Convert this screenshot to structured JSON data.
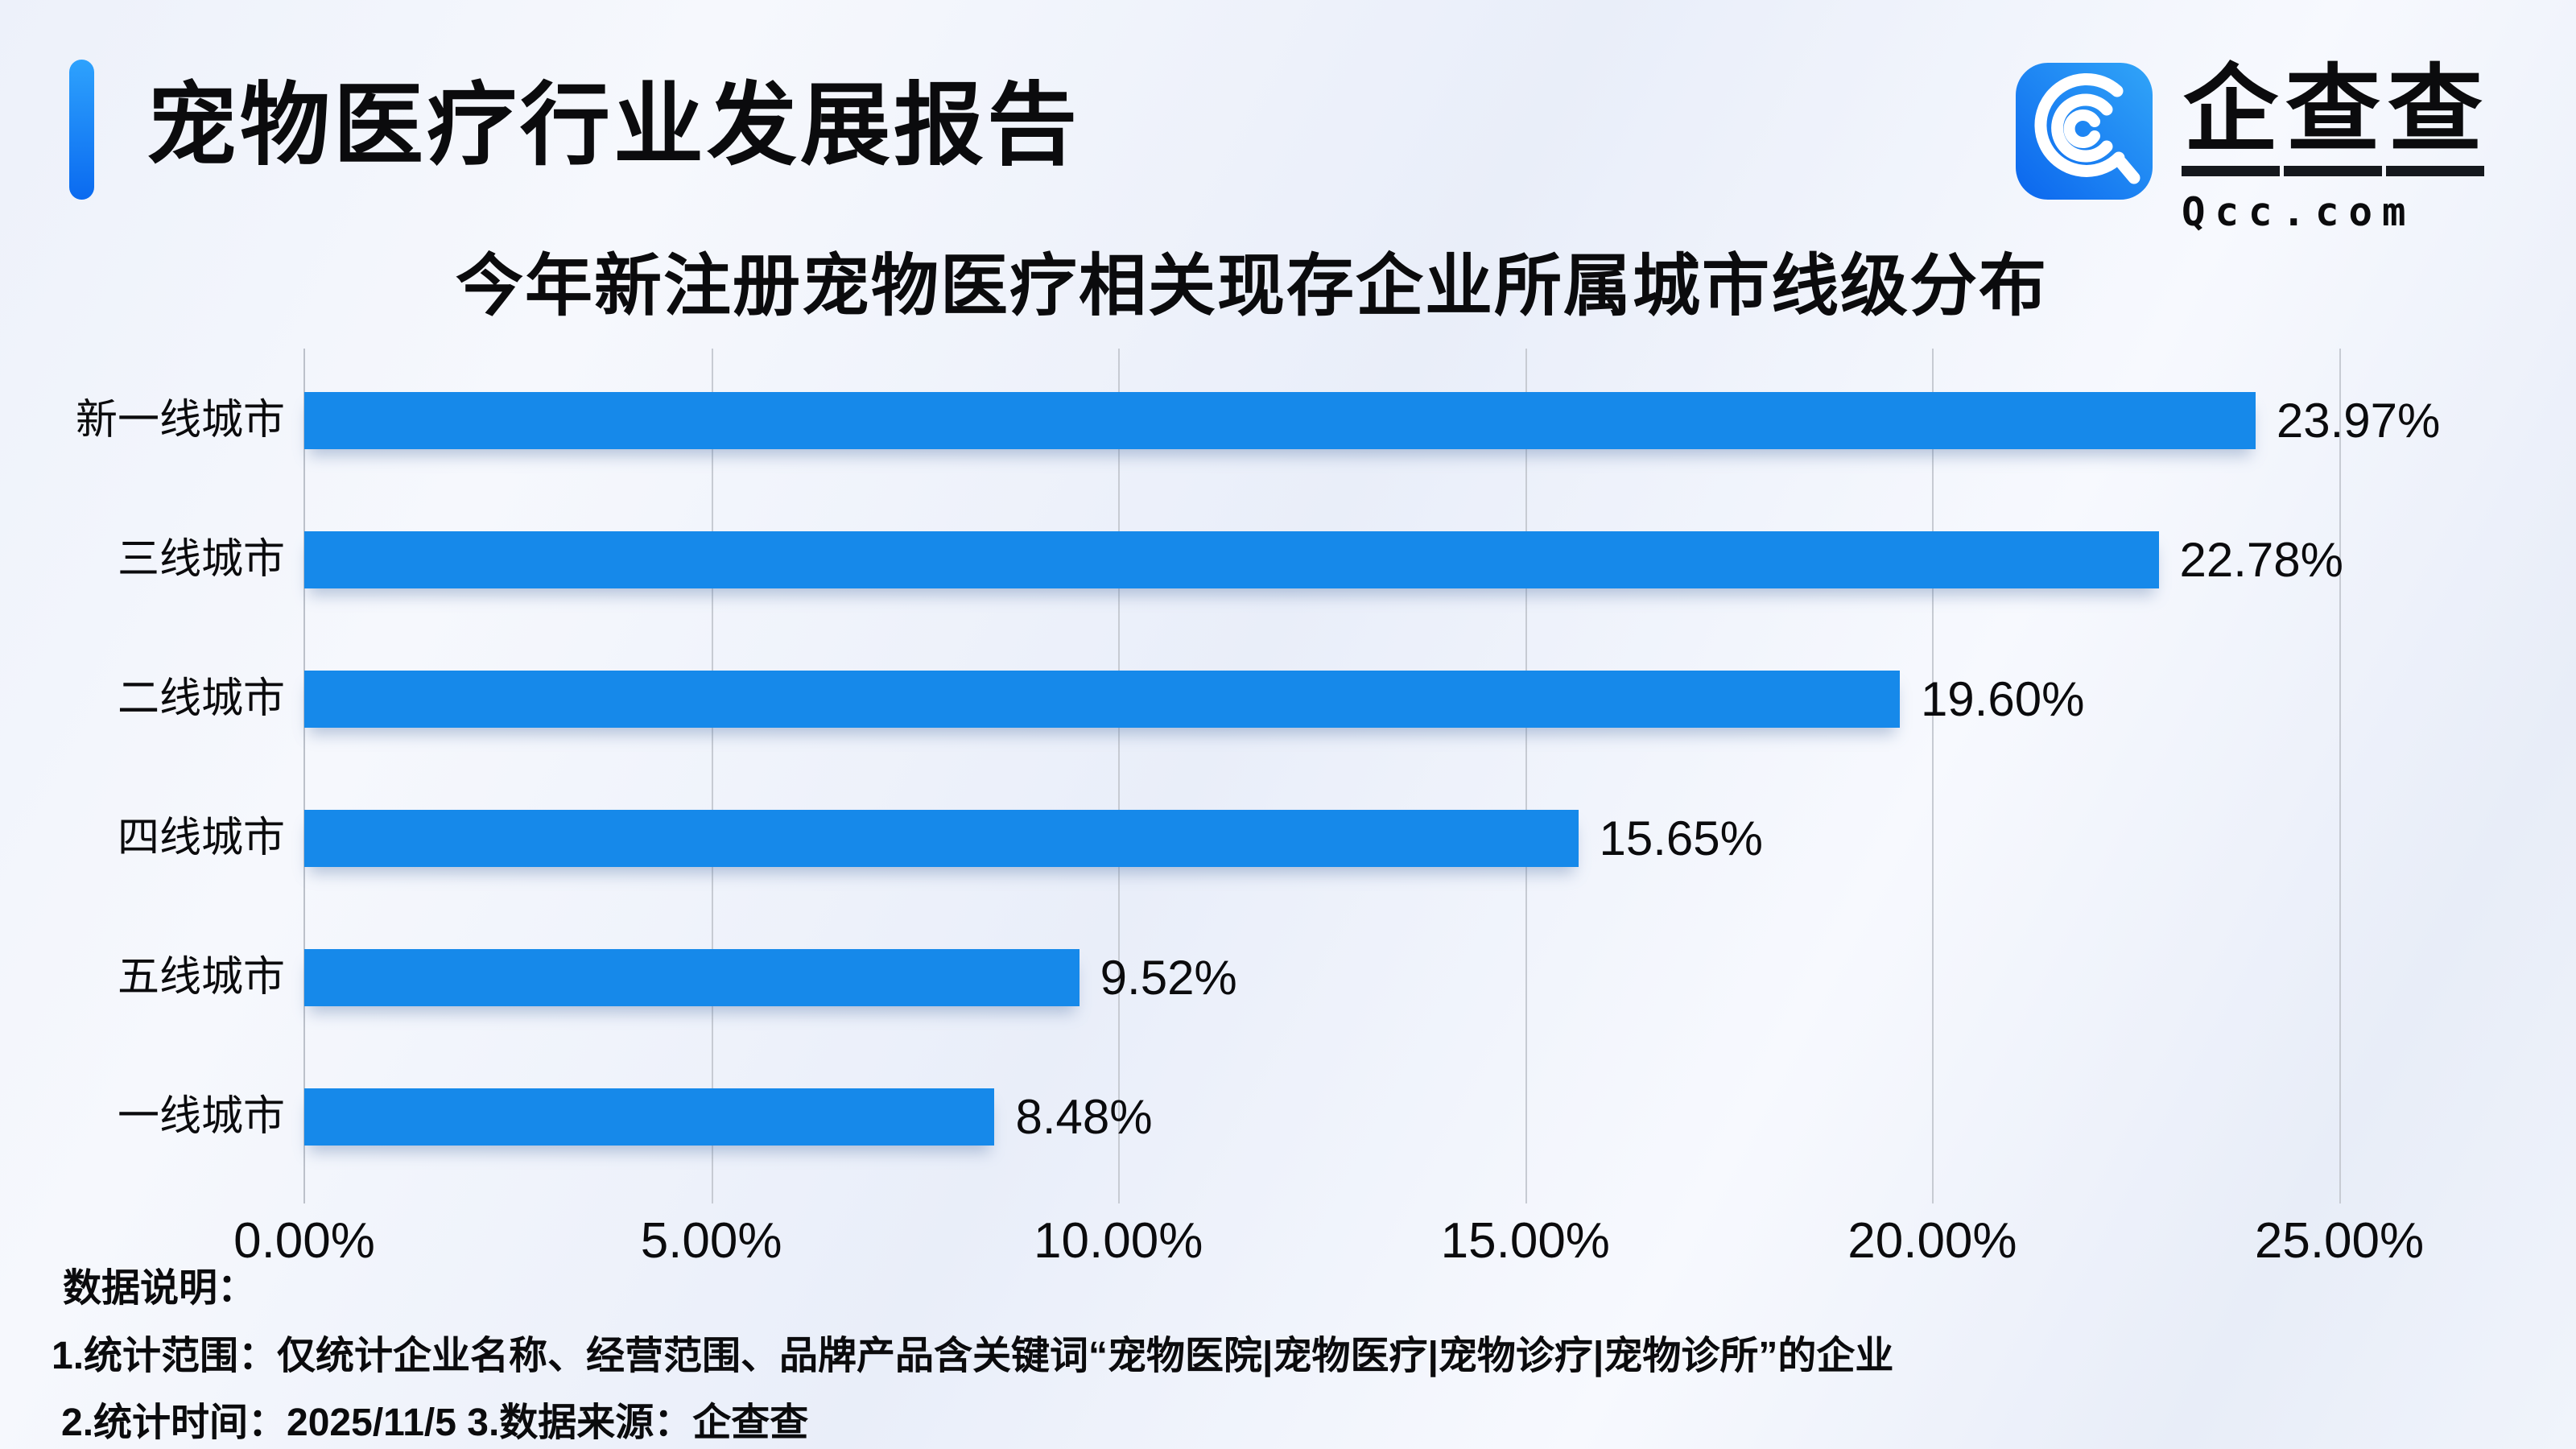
{
  "header": {
    "title": "宠物医疗行业发展报告",
    "accent_color_top": "#2ea2fd",
    "accent_color_bottom": "#0a6af0"
  },
  "logo": {
    "brand": "企查查",
    "domain": "Qcc.com",
    "icon": "qcc-magnifier-icon",
    "icon_gradient_start": "#0b66ee",
    "icon_gradient_end": "#31a5f8"
  },
  "chart_data": {
    "type": "bar",
    "orientation": "horizontal",
    "title": "今年新注册宠物医疗相关现存企业所属城市线级分布",
    "categories": [
      "新一线城市",
      "三线城市",
      "二线城市",
      "四线城市",
      "五线城市",
      "一线城市"
    ],
    "values": [
      23.97,
      22.78,
      19.6,
      15.65,
      9.52,
      8.48
    ],
    "value_labels": [
      "23.97%",
      "22.78%",
      "19.60%",
      "15.65%",
      "9.52%",
      "8.48%"
    ],
    "x_ticks": [
      "0.00%",
      "5.00%",
      "10.00%",
      "15.00%",
      "20.00%",
      "25.00%"
    ],
    "xlim": [
      0,
      25
    ],
    "bar_color": "#1689EA",
    "gridline_color": "#c7cbd3",
    "grid": true,
    "legend": "none"
  },
  "notes": {
    "heading": "数据说明：",
    "line1": "1.统计范围：仅统计企业名称、经营范围、品牌产品含关键词“宠物医院|宠物医疗|宠物诊疗|宠物诊所”的企业",
    "line2": "2.统计时间：2025/11/5  3.数据来源：企查查"
  }
}
